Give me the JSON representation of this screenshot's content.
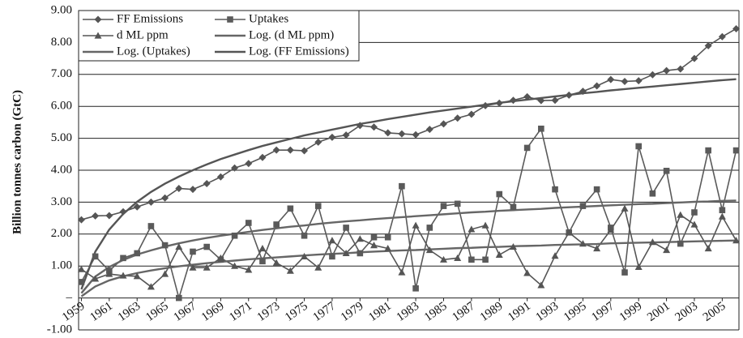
{
  "chart_data": {
    "type": "line",
    "y_label": "Billion tonnes carbon (GtC)",
    "x": [
      1959,
      1960,
      1961,
      1962,
      1963,
      1964,
      1965,
      1966,
      1967,
      1968,
      1969,
      1970,
      1971,
      1972,
      1973,
      1974,
      1975,
      1976,
      1977,
      1978,
      1979,
      1980,
      1981,
      1982,
      1983,
      1984,
      1985,
      1986,
      1987,
      1988,
      1989,
      1990,
      1991,
      1992,
      1993,
      1994,
      1995,
      1996,
      1997,
      1998,
      1999,
      2000,
      2001,
      2002,
      2003,
      2004,
      2005,
      2006
    ],
    "xlim": [
      1958.8,
      2006.2
    ],
    "xticks": [
      1959,
      1961,
      1963,
      1965,
      1967,
      1969,
      1971,
      1973,
      1975,
      1977,
      1979,
      1981,
      1983,
      1985,
      1987,
      1989,
      1991,
      1993,
      1995,
      1997,
      1999,
      2001,
      2003,
      2005
    ],
    "ylim": [
      -1,
      9
    ],
    "yticks": [
      {
        "value": 9,
        "label": "9.00"
      },
      {
        "value": 8,
        "label": "8.00"
      },
      {
        "value": 7,
        "label": "7.00"
      },
      {
        "value": 6,
        "label": "6.00"
      },
      {
        "value": 5,
        "label": "5.00"
      },
      {
        "value": 4,
        "label": "4.00"
      },
      {
        "value": 3,
        "label": "3.00"
      },
      {
        "value": 2,
        "label": "2.00"
      },
      {
        "value": 1,
        "label": "1.00"
      },
      {
        "value": 0,
        "label": "–"
      },
      {
        "value": -1,
        "label": "-1.00"
      }
    ],
    "grid": true,
    "legend": "top-left",
    "series": [
      {
        "name": "FF Emissions",
        "color": "#555555",
        "marker": "diamond",
        "values": [
          2.45,
          2.57,
          2.58,
          2.7,
          2.85,
          3.0,
          3.13,
          3.43,
          3.4,
          3.58,
          3.79,
          4.07,
          4.21,
          4.4,
          4.63,
          4.63,
          4.61,
          4.88,
          5.03,
          5.1,
          5.4,
          5.35,
          5.17,
          5.14,
          5.11,
          5.28,
          5.45,
          5.63,
          5.75,
          6.02,
          6.1,
          6.19,
          6.3,
          6.18,
          6.19,
          6.35,
          6.47,
          6.64,
          6.84,
          6.78,
          6.8,
          6.99,
          7.12,
          7.17,
          7.5,
          7.9,
          8.18,
          8.43
        ]
      },
      {
        "name": "Uptakes",
        "color": "#5a5a5a",
        "marker": "square",
        "values": [
          0.5,
          1.3,
          0.85,
          1.25,
          1.4,
          2.25,
          1.65,
          0.0,
          1.45,
          1.6,
          1.2,
          1.95,
          2.35,
          1.15,
          2.3,
          2.8,
          1.95,
          2.88,
          1.3,
          2.2,
          1.4,
          1.9,
          1.9,
          3.5,
          0.3,
          2.2,
          2.88,
          2.95,
          1.2,
          1.2,
          3.25,
          2.85,
          4.7,
          5.3,
          3.4,
          2.05,
          2.88,
          3.4,
          2.2,
          0.8,
          4.75,
          3.27,
          3.98,
          1.7,
          2.68,
          4.62,
          2.75,
          4.62
        ]
      },
      {
        "name": "d ML ppm",
        "color": "#555555",
        "marker": "triangle",
        "values": [
          0.9,
          0.6,
          0.75,
          0.7,
          0.68,
          0.35,
          0.75,
          1.6,
          0.95,
          0.95,
          1.25,
          1.0,
          0.88,
          1.55,
          1.1,
          0.85,
          1.3,
          0.95,
          1.8,
          1.4,
          1.85,
          1.65,
          1.55,
          0.8,
          2.27,
          1.5,
          1.2,
          1.25,
          2.15,
          2.27,
          1.35,
          1.6,
          0.78,
          0.4,
          1.32,
          2.05,
          1.7,
          1.55,
          2.13,
          2.8,
          0.97,
          1.75,
          1.5,
          2.6,
          2.3,
          1.55,
          2.55,
          1.8
        ]
      },
      {
        "name": "Log. (d ML ppm)",
        "color": "#666666",
        "values": [
          0.05,
          0.36,
          0.55,
          0.68,
          0.78,
          0.86,
          0.93,
          0.99,
          1.04,
          1.09,
          1.13,
          1.17,
          1.21,
          1.24,
          1.27,
          1.3,
          1.33,
          1.36,
          1.38,
          1.4,
          1.43,
          1.45,
          1.47,
          1.49,
          1.5,
          1.52,
          1.54,
          1.56,
          1.57,
          1.59,
          1.6,
          1.62,
          1.63,
          1.64,
          1.66,
          1.67,
          1.68,
          1.69,
          1.71,
          1.72,
          1.73,
          1.74,
          1.75,
          1.76,
          1.77,
          1.78,
          1.79,
          1.8
        ]
      },
      {
        "name": "Log. (Uptakes)",
        "color": "#666666",
        "values": [
          0.15,
          0.67,
          0.97,
          1.19,
          1.36,
          1.49,
          1.61,
          1.71,
          1.8,
          1.88,
          1.95,
          2.01,
          2.07,
          2.13,
          2.18,
          2.23,
          2.27,
          2.32,
          2.36,
          2.4,
          2.43,
          2.47,
          2.5,
          2.53,
          2.56,
          2.59,
          2.62,
          2.65,
          2.68,
          2.7,
          2.73,
          2.75,
          2.77,
          2.79,
          2.82,
          2.84,
          2.86,
          2.88,
          2.9,
          2.92,
          2.94,
          2.95,
          2.97,
          2.99,
          3.01,
          3.02,
          3.04,
          3.05
        ]
      },
      {
        "name": "Log. (FF Emissions)",
        "color": "#555555",
        "values": [
          0.27,
          1.45,
          2.14,
          2.63,
          3.01,
          3.32,
          3.58,
          3.8,
          4.0,
          4.18,
          4.35,
          4.49,
          4.63,
          4.76,
          4.87,
          4.98,
          5.09,
          5.18,
          5.27,
          5.36,
          5.45,
          5.52,
          5.6,
          5.67,
          5.74,
          5.81,
          5.87,
          5.93,
          5.99,
          6.05,
          6.11,
          6.16,
          6.21,
          6.26,
          6.31,
          6.36,
          6.41,
          6.45,
          6.5,
          6.54,
          6.58,
          6.62,
          6.66,
          6.7,
          6.74,
          6.78,
          6.82,
          6.85
        ]
      }
    ]
  }
}
